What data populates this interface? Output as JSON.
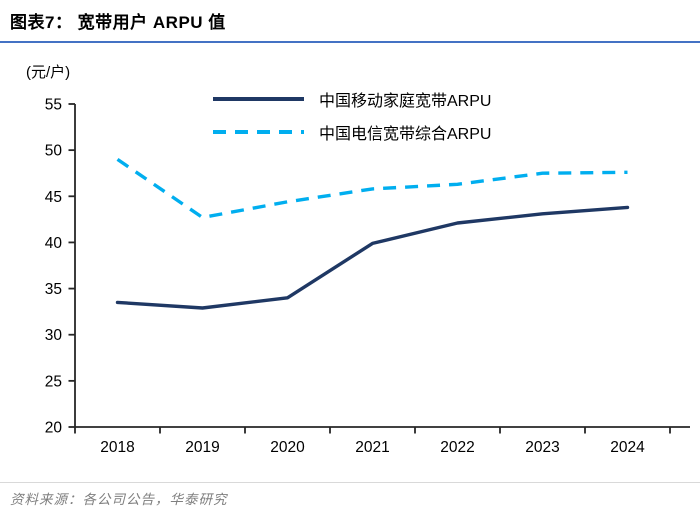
{
  "title": "图表7： 宽带用户 ARPU 值",
  "unit_label": "(元/户)",
  "source_note": "资料来源：各公司公告，华泰研究",
  "colors": {
    "mobile_line": "#1F3864",
    "telecom_line": "#00AEEF",
    "title_underline": "#4472C4",
    "axis": "#262626",
    "tick_text": "#000000",
    "source_text": "#7F7F7F",
    "divider": "#D9D9D9",
    "background": "#FFFFFF"
  },
  "chart_data": {
    "type": "line",
    "categories": [
      "2018",
      "2019",
      "2020",
      "2021",
      "2022",
      "2023",
      "2024"
    ],
    "series": [
      {
        "name": "中国移动家庭宽带ARPU",
        "style": "solid",
        "color_key": "mobile_line",
        "values": [
          33.5,
          32.9,
          34.0,
          39.9,
          42.1,
          43.1,
          43.8
        ]
      },
      {
        "name": "中国电信宽带综合ARPU",
        "style": "dashed",
        "color_key": "telecom_line",
        "values": [
          49.0,
          42.7,
          44.4,
          45.8,
          46.3,
          47.5,
          47.6
        ]
      }
    ],
    "title": "图表7： 宽带用户 ARPU 值",
    "xlabel": "",
    "ylabel": "(元/户)",
    "ylim": [
      20,
      55
    ],
    "ytick_step": 5,
    "yticks": [
      20,
      25,
      30,
      35,
      40,
      45,
      50,
      55
    ],
    "grid": false,
    "legend_position": "top-center"
  }
}
